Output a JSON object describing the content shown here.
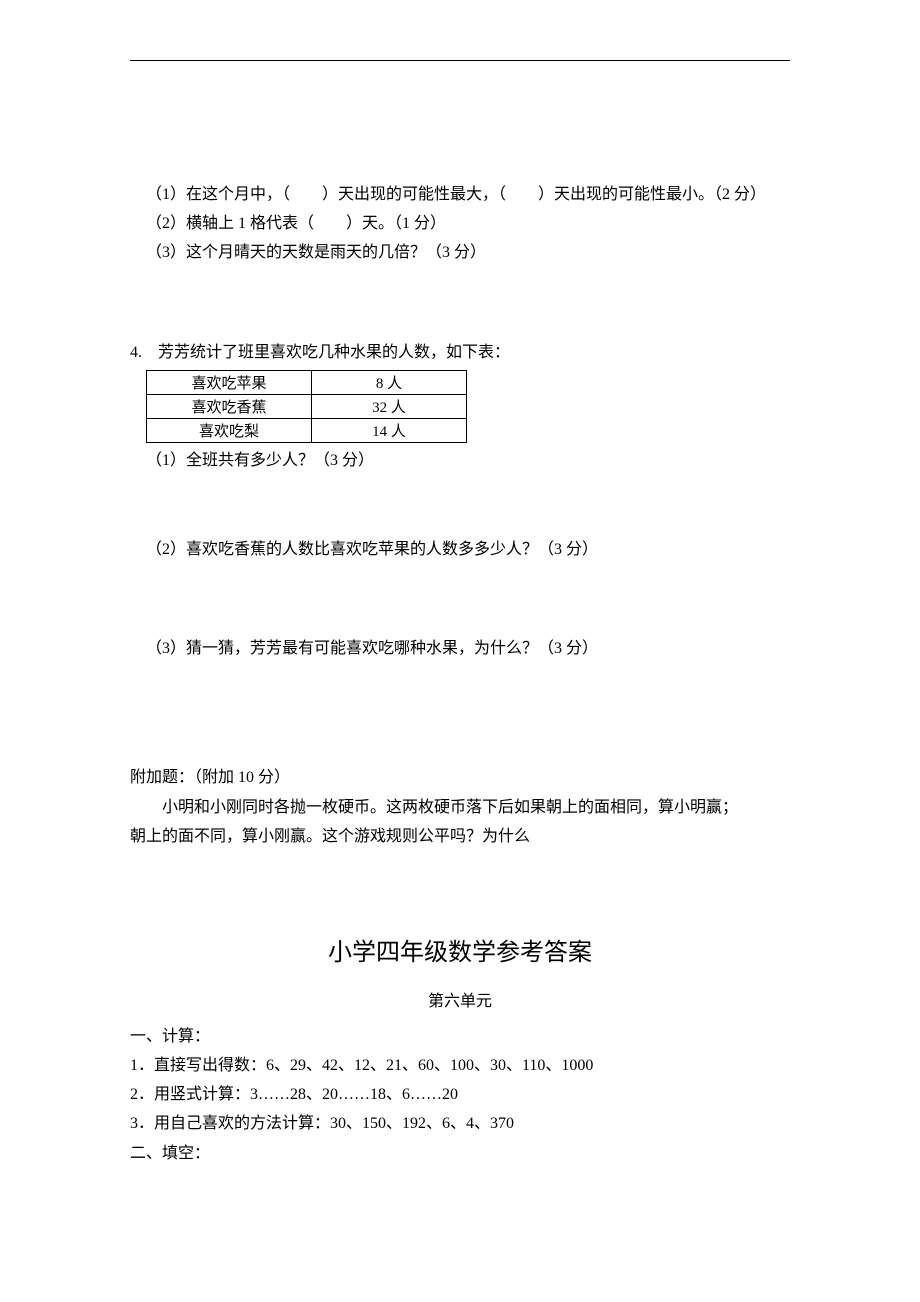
{
  "q_weather": {
    "line1": "（1）在这个月中，（　　）天出现的可能性最大，（　　）天出现的可能性最小。（2 分）",
    "line2": "（2）横轴上 1 格代表（　　）天。（1 分）",
    "line3": "（3）这个月晴天的天数是雨天的几倍？（3 分）"
  },
  "q4": {
    "intro": "4.　芳芳统计了班里喜欢吃几种水果的人数，如下表：",
    "table": {
      "rows": [
        [
          "喜欢吃苹果",
          "8 人"
        ],
        [
          "喜欢吃香蕉",
          "32 人"
        ],
        [
          "喜欢吃梨",
          "14 人"
        ]
      ]
    },
    "sub1": "（1）全班共有多少人？（3 分）",
    "sub2": "（2）喜欢吃香蕉的人数比喜欢吃苹果的人数多多少人？（3 分）",
    "sub3": "（3）猜一猜，芳芳最有可能喜欢吃哪种水果，为什么？（3 分）"
  },
  "bonus": {
    "title": "附加题：（附加 10 分）",
    "body1": "小明和小刚同时各抛一枚硬币。这两枚硬币落下后如果朝上的面相同，算小明赢；",
    "body2": "朝上的面不同，算小刚赢。这个游戏规则公平吗？为什么"
  },
  "answers": {
    "title": "小学四年级数学参考答案",
    "subtitle": "第六单元",
    "section1_title": "一、计算：",
    "line1": "1．直接写出得数：6、29、42、12、21、60、100、30、110、1000",
    "line2": "2．用竖式计算：3……28、20……18、6……20",
    "line3": "3．用自己喜欢的方法计算：30、150、192、6、4、370",
    "section2_title": "二、填空："
  }
}
